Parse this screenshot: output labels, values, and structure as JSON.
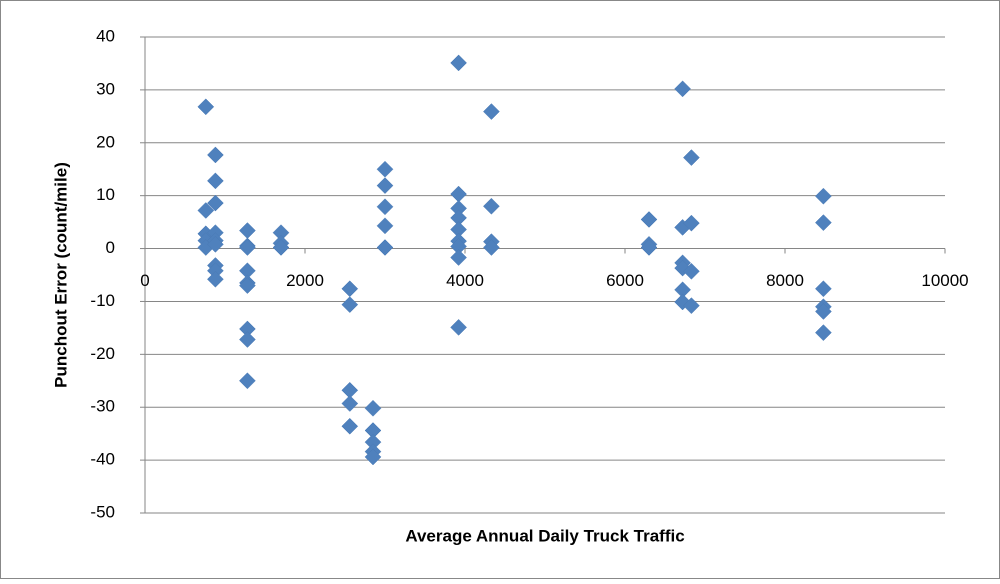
{
  "chart_data": {
    "type": "scatter",
    "x_label": "Average Annual Daily Truck Traffic",
    "y_label": "Punchout Error (count/mile)",
    "x": [
      760,
      760,
      760,
      760,
      760,
      880,
      880,
      880,
      880,
      880,
      880,
      880,
      880,
      880,
      1280,
      1280,
      1280,
      1280,
      1280,
      1280,
      1280,
      1280,
      1280,
      1700,
      1700,
      1700,
      2560,
      2560,
      2560,
      2560,
      2560,
      2850,
      2850,
      2850,
      2850,
      2850,
      3000,
      3000,
      3000,
      3000,
      3000,
      3920,
      3920,
      3920,
      3920,
      3920,
      3920,
      3920,
      3920,
      3920,
      4330,
      4330,
      4330,
      4330,
      6300,
      6300,
      6300,
      6720,
      6720,
      6720,
      6720,
      6720,
      6720,
      6830,
      6830,
      6830,
      6830,
      8480,
      8480,
      8480,
      8480,
      8480,
      8480
    ],
    "values": [
      26.8,
      7.2,
      2.8,
      1.5,
      0.2,
      17.7,
      12.8,
      8.6,
      3.0,
      1.5,
      0.8,
      -3.2,
      -4.2,
      -5.8,
      3.4,
      0.5,
      0.2,
      -4.2,
      -6.5,
      -7.0,
      -15.2,
      -17.2,
      -25.0,
      3.0,
      1.0,
      0.2,
      -7.6,
      -10.6,
      -26.8,
      -29.3,
      -33.6,
      -30.2,
      -34.4,
      -36.6,
      -38.4,
      -39.4,
      15.0,
      11.9,
      7.9,
      4.3,
      0.2,
      35.1,
      10.3,
      7.6,
      5.8,
      3.6,
      1.4,
      0.4,
      -1.7,
      -14.9,
      25.9,
      8.0,
      1.3,
      0.2,
      5.5,
      0.8,
      0.2,
      30.2,
      4.0,
      -2.7,
      -3.7,
      -7.8,
      -10.1,
      17.2,
      4.8,
      -4.3,
      -10.8,
      9.9,
      4.9,
      -7.6,
      -11.0,
      -11.9,
      -15.9
    ],
    "color": "#4f81bd",
    "xlim": [
      0,
      10000
    ],
    "xticks": [
      0,
      2000,
      4000,
      6000,
      8000,
      10000
    ],
    "ylim": [
      -50,
      40
    ],
    "yticks": [
      -50,
      -40,
      -30,
      -20,
      -10,
      0,
      10,
      20,
      30,
      40
    ],
    "grid": true
  }
}
